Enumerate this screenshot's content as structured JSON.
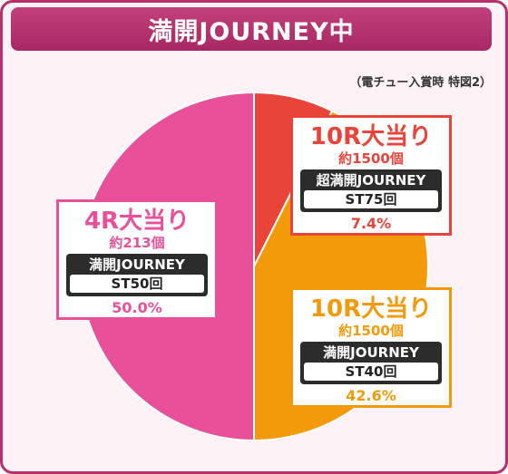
{
  "header": {
    "title": "満開JOURNEY中"
  },
  "note": "（電チュー入賞時 特図2）",
  "colors": {
    "pink": "#e8509a",
    "red": "#e8443a",
    "orange": "#f39a0a",
    "frame": "#b8306a"
  },
  "chart_data": {
    "type": "pie",
    "title": "満開JOURNEY中",
    "slices": [
      {
        "label": "10R大当り",
        "count": "約1500個",
        "mode": "超満開JOURNEY",
        "st": "ST75回",
        "percent_label": "7.4%",
        "value": 7.4,
        "color": "#e8443a"
      },
      {
        "label": "10R大当り",
        "count": "約1500個",
        "mode": "満開JOURNEY",
        "st": "ST40回",
        "percent_label": "42.6%",
        "value": 42.6,
        "color": "#f39a0a"
      },
      {
        "label": "4R大当り",
        "count": "約213個",
        "mode": "満開JOURNEY",
        "st": "ST50回",
        "percent_label": "50.0%",
        "value": 50.0,
        "color": "#e8509a"
      }
    ]
  }
}
